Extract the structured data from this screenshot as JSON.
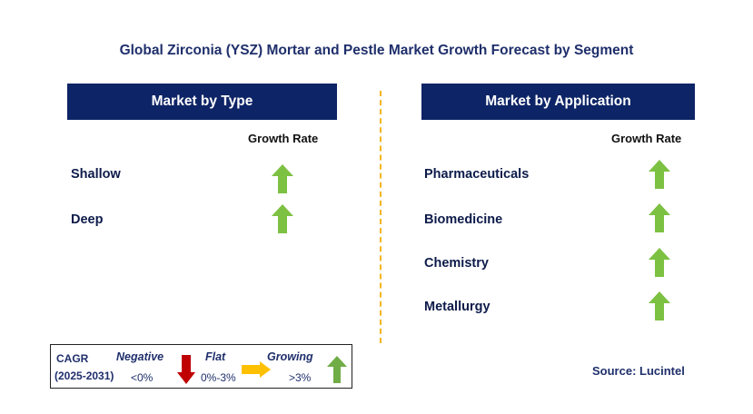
{
  "title": "Global Zirconia (YSZ) Mortar and Pestle Market Growth Forecast by Segment",
  "left_panel": {
    "header": "Market by Type",
    "growth_rate_label": "Growth Rate",
    "items": [
      {
        "label": "Shallow",
        "trend": "growing"
      },
      {
        "label": "Deep",
        "trend": "growing"
      }
    ]
  },
  "right_panel": {
    "header": "Market by Application",
    "growth_rate_label": "Growth Rate",
    "items": [
      {
        "label": "Pharmaceuticals",
        "trend": "growing"
      },
      {
        "label": "Biomedicine",
        "trend": "growing"
      },
      {
        "label": "Chemistry",
        "trend": "growing"
      },
      {
        "label": "Metallurgy",
        "trend": "growing"
      }
    ]
  },
  "legend": {
    "cagr_label": "CAGR",
    "period": "(2025-2031)",
    "negative": {
      "label": "Negative",
      "range": "<0%",
      "icon": "down-arrow-icon",
      "color": "#c00000"
    },
    "flat": {
      "label": "Flat",
      "range": "0%-3%",
      "icon": "right-arrow-icon",
      "color": "#ffc000"
    },
    "growing": {
      "label": "Growing",
      "range": ">3%",
      "icon": "up-arrow-icon",
      "color": "#70ad47"
    }
  },
  "source": "Source: Lucintel",
  "colors": {
    "header_bg": "#0d2466",
    "divider": "#f3b51b",
    "up_arrow": "#7dc143"
  }
}
